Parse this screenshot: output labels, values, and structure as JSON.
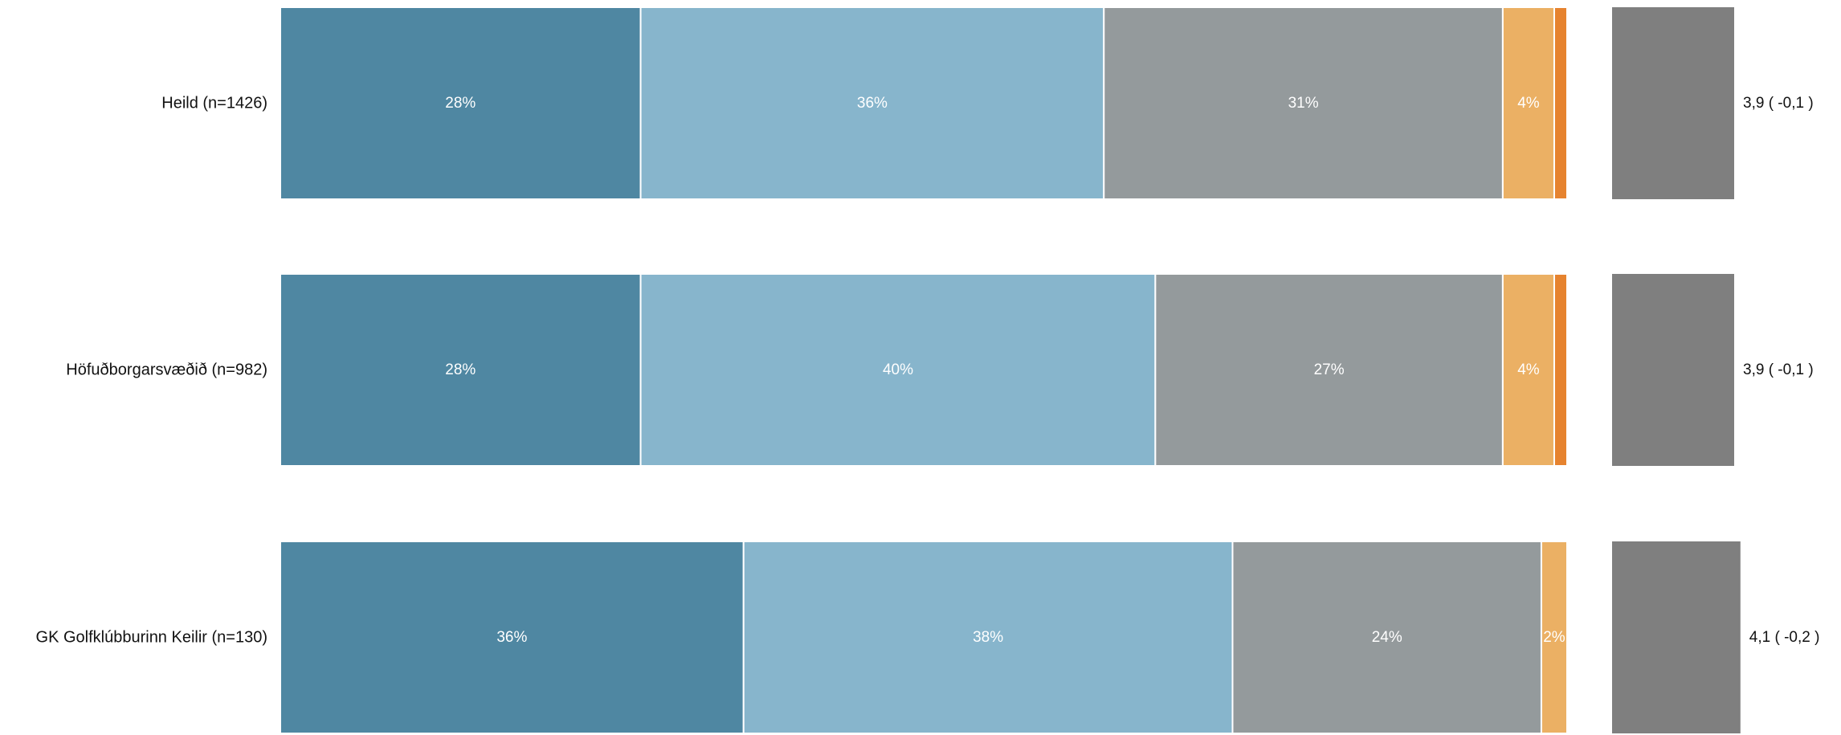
{
  "chart_data": {
    "type": "bar",
    "orientation": "horizontal",
    "stacked": true,
    "categories": [
      "Heild (n=1426)",
      "Höfuðborgarsvæðið (n=982)",
      "GK Golfklúbburinn Keilir (n=130)"
    ],
    "series": [
      {
        "values": [
          28,
          28,
          36
        ],
        "labels": [
          "28%",
          "28%",
          "36%"
        ],
        "color": "#4f87a2"
      },
      {
        "values": [
          36,
          40,
          38
        ],
        "labels": [
          "36%",
          "40%",
          "38%"
        ],
        "color": "#87b5cc"
      },
      {
        "values": [
          31,
          27,
          24
        ],
        "labels": [
          "31%",
          "27%",
          "24%"
        ],
        "color": "#949a9c"
      },
      {
        "values": [
          4,
          4,
          2
        ],
        "labels": [
          "4%",
          "4%",
          "2%"
        ],
        "color": "#ebb064"
      },
      {
        "values": [
          1,
          1,
          0
        ],
        "labels": [
          "",
          "",
          ""
        ],
        "color": "#e6832f"
      }
    ],
    "means": [
      {
        "label": "3,9 ( -0,1 )",
        "value": 3.9
      },
      {
        "label": "3,9 ( -0,1 )",
        "value": 3.9
      },
      {
        "label": "4,1 ( -0,2 )",
        "value": 4.1
      }
    ],
    "mean_color": "#7f7f7f",
    "xlim": [
      0,
      100
    ],
    "legend": "none",
    "grid": false
  }
}
